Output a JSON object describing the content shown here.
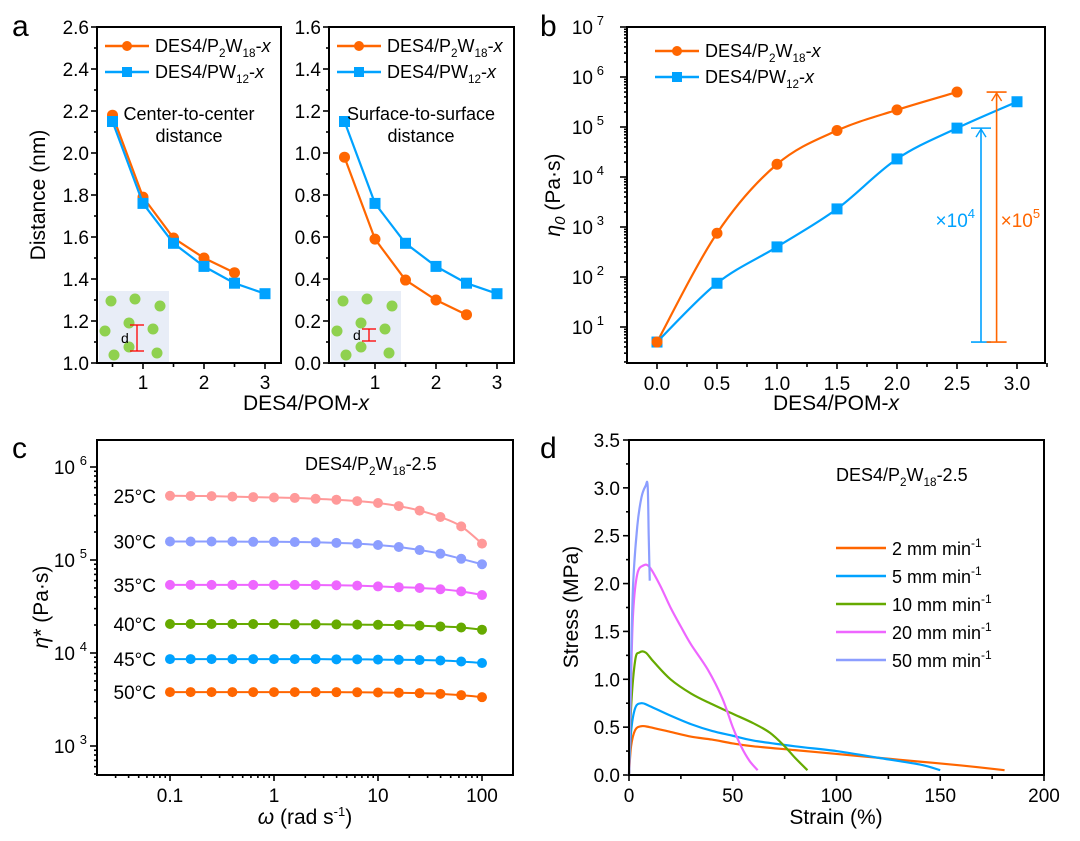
{
  "colors": {
    "orange": "#ff6600",
    "blue": "#00a2ff",
    "pink": "#ff9999",
    "periwinkle": "#8c9eff",
    "magenta": "#ee66ff",
    "green": "#66aa00",
    "inset_bg": "#e8edf7",
    "inset_dot": "#8fd14f",
    "inset_marker": "#ff0000"
  },
  "panels": {
    "a": "a",
    "b": "b",
    "c": "c",
    "d": "d"
  },
  "chart_data": [
    {
      "id": "a-left",
      "type": "line",
      "panel": "a",
      "title": "",
      "annotation": [
        "Center-to-center",
        "distance"
      ],
      "xlabel": "DES4/POM-x",
      "ylabel": "Distance (nm)",
      "xlim": [
        0.3,
        3.25
      ],
      "ylim": [
        1.0,
        2.6
      ],
      "xticks": [
        1,
        2,
        3
      ],
      "yticks": [
        1.0,
        1.2,
        1.4,
        1.6,
        1.8,
        2.0,
        2.2,
        2.4,
        2.6
      ],
      "legend": "top-left",
      "series": [
        {
          "name": "DES4/P2W18-x",
          "label_main": "DES4/P",
          "sub1": "2",
          "mid": "W",
          "sub2": "18",
          "tail": "-x",
          "color": "#ff6600",
          "marker": "circle",
          "x": [
            0.5,
            1.0,
            1.5,
            2.0,
            2.5
          ],
          "y": [
            2.18,
            1.79,
            1.595,
            1.5,
            1.43
          ]
        },
        {
          "name": "DES4/PW12-x",
          "label_main": "DES4/PW",
          "sub1": "12",
          "mid": "",
          "sub2": "",
          "tail": "-x",
          "color": "#00a2ff",
          "marker": "square",
          "x": [
            0.5,
            1.0,
            1.5,
            2.0,
            2.5,
            3.0
          ],
          "y": [
            2.15,
            1.76,
            1.57,
            1.46,
            1.38,
            1.33
          ]
        }
      ],
      "inset": {
        "label": "d"
      }
    },
    {
      "id": "a-right",
      "type": "line",
      "panel": "a",
      "annotation": [
        "Surface-to-surface",
        "distance"
      ],
      "xlabel": "DES4/POM-x",
      "ylabel": "",
      "xlim": [
        0.3,
        3.25
      ],
      "ylim": [
        0.0,
        1.6
      ],
      "xticks": [
        1,
        2,
        3
      ],
      "yticks": [
        0.0,
        0.2,
        0.4,
        0.6,
        0.8,
        1.0,
        1.2,
        1.4,
        1.6
      ],
      "legend": "top-left",
      "series": [
        {
          "name": "DES4/P2W18-x",
          "color": "#ff6600",
          "marker": "circle",
          "x": [
            0.5,
            1.0,
            1.5,
            2.0,
            2.5
          ],
          "y": [
            0.98,
            0.59,
            0.395,
            0.3,
            0.23
          ]
        },
        {
          "name": "DES4/PW12-x",
          "color": "#00a2ff",
          "marker": "square",
          "x": [
            0.5,
            1.0,
            1.5,
            2.0,
            2.5,
            3.0
          ],
          "y": [
            1.15,
            0.76,
            0.57,
            0.46,
            0.38,
            0.33
          ]
        }
      ],
      "inset": {
        "label": "d"
      }
    },
    {
      "id": "b",
      "type": "line",
      "panel": "b",
      "xlabel": "DES4/POM-x",
      "ylabel": "η0 (Pa·s)",
      "yscale": "log",
      "xlim": [
        -0.25,
        3.25
      ],
      "ylim": [
        2,
        10000000
      ],
      "xticks": [
        0.0,
        0.5,
        1.0,
        1.5,
        2.0,
        2.5,
        3.0
      ],
      "xticklabels": [
        "0.0",
        "0.5",
        "1.0",
        "1.5",
        "2.0",
        "2.5",
        "3.0"
      ],
      "yticks_exp": [
        1,
        2,
        3,
        4,
        5,
        6,
        7
      ],
      "legend": "top-left",
      "series": [
        {
          "name": "DES4/P2W18-x",
          "color": "#ff6600",
          "marker": "circle",
          "x": [
            0.0,
            0.5,
            1.0,
            1.5,
            2.0,
            2.5
          ],
          "y": [
            5,
            750,
            18000,
            85000,
            220000,
            500000
          ]
        },
        {
          "name": "DES4/PW12-x",
          "color": "#00a2ff",
          "marker": "square",
          "x": [
            0.0,
            0.5,
            1.0,
            1.5,
            2.0,
            2.5,
            3.0
          ],
          "y": [
            5,
            75,
            400,
            2300,
            23000,
            95000,
            320000
          ]
        }
      ],
      "annotations": [
        {
          "text_base": "×10",
          "text_exp": "4",
          "color": "#00a2ff",
          "x": 2.7,
          "y_from": 5,
          "y_to": 95000
        },
        {
          "text_base": "×10",
          "text_exp": "5",
          "color": "#ff6600",
          "x": 2.83,
          "y_from": 5,
          "y_to": 500000
        }
      ]
    },
    {
      "id": "c",
      "type": "line",
      "panel": "c",
      "title": "DES4/P2W18-2.5",
      "xlabel": "ω (rad s-1)",
      "ylabel": "η* (Pa·s)",
      "xscale": "log",
      "yscale": "log",
      "xlim": [
        0.02,
        200
      ],
      "ylim": [
        500,
        1500000
      ],
      "xticks": [
        0.1,
        1,
        10,
        100
      ],
      "xticklabels": [
        "0.1",
        "1",
        "10",
        "100"
      ],
      "yticks_exp": [
        3,
        4,
        5,
        6
      ],
      "x": [
        0.1,
        0.158,
        0.251,
        0.398,
        0.631,
        1,
        1.585,
        2.512,
        3.981,
        6.31,
        10,
        15.85,
        25.12,
        39.81,
        63.1,
        100
      ],
      "series": [
        {
          "name": "25°C",
          "color": "#ff9999",
          "y": [
            490000,
            488000,
            486000,
            480000,
            475000,
            470000,
            465000,
            455000,
            445000,
            430000,
            410000,
            380000,
            340000,
            290000,
            230000,
            150000
          ]
        },
        {
          "name": "30°C",
          "color": "#8c9eff",
          "y": [
            158000,
            158000,
            158000,
            158000,
            157000,
            157000,
            156000,
            155000,
            153000,
            150000,
            145000,
            138000,
            128000,
            117000,
            103000,
            90000
          ]
        },
        {
          "name": "35°C",
          "color": "#ee66ff",
          "y": [
            54000,
            54000,
            54000,
            54000,
            54000,
            54000,
            54000,
            53800,
            53500,
            53000,
            52000,
            51000,
            50000,
            48500,
            46000,
            42000
          ]
        },
        {
          "name": "40°C",
          "color": "#66aa00",
          "y": [
            20500,
            20500,
            20500,
            20500,
            20500,
            20500,
            20400,
            20400,
            20300,
            20200,
            20100,
            20000,
            19700,
            19300,
            18800,
            17800
          ]
        },
        {
          "name": "45°C",
          "color": "#00a2ff",
          "y": [
            8600,
            8600,
            8600,
            8600,
            8600,
            8600,
            8600,
            8600,
            8550,
            8550,
            8500,
            8450,
            8400,
            8300,
            8100,
            7800
          ]
        },
        {
          "name": "50°C",
          "color": "#ff6600",
          "y": [
            3800,
            3800,
            3800,
            3800,
            3800,
            3800,
            3800,
            3800,
            3790,
            3780,
            3760,
            3740,
            3700,
            3640,
            3520,
            3350
          ]
        }
      ]
    },
    {
      "id": "d",
      "type": "line",
      "panel": "d",
      "title": "DES4/P2W18-2.5",
      "xlabel": "Strain (%)",
      "ylabel": "Stress (MPa)",
      "xlim": [
        0,
        200
      ],
      "ylim": [
        0,
        3.5
      ],
      "xticks": [
        0,
        50,
        100,
        150,
        200
      ],
      "yticks": [
        0.0,
        0.5,
        1.0,
        1.5,
        2.0,
        2.5,
        3.0,
        3.5
      ],
      "yticklabels": [
        "0.0",
        "0.5",
        "1.0",
        "1.5",
        "2.0",
        "2.5",
        "3.0",
        "3.5"
      ],
      "legend": "right",
      "series": [
        {
          "name": "2 mm min-1",
          "label": "2 mm min",
          "color": "#ff6600",
          "x": [
            0,
            1,
            3,
            6,
            10,
            20,
            30,
            40,
            50,
            60,
            80,
            100,
            120,
            140,
            160,
            181
          ],
          "y": [
            0,
            0.3,
            0.47,
            0.51,
            0.5,
            0.45,
            0.4,
            0.37,
            0.33,
            0.3,
            0.26,
            0.22,
            0.18,
            0.14,
            0.1,
            0.05
          ]
        },
        {
          "name": "5 mm min-1",
          "label": "5 mm min",
          "color": "#00a2ff",
          "x": [
            0,
            1,
            3,
            6,
            10,
            20,
            30,
            40,
            50,
            60,
            80,
            100,
            120,
            140,
            150
          ],
          "y": [
            0,
            0.45,
            0.7,
            0.75,
            0.72,
            0.62,
            0.53,
            0.46,
            0.41,
            0.36,
            0.3,
            0.25,
            0.18,
            0.11,
            0.05
          ]
        },
        {
          "name": "10 mm min-1",
          "label": "10 mm min",
          "color": "#66aa00",
          "x": [
            0,
            1,
            3,
            5,
            8,
            12,
            20,
            30,
            40,
            50,
            60,
            68,
            75,
            80,
            86
          ],
          "y": [
            0,
            0.7,
            1.2,
            1.28,
            1.28,
            1.18,
            1.0,
            0.85,
            0.74,
            0.64,
            0.54,
            0.44,
            0.3,
            0.18,
            0.05
          ]
        },
        {
          "name": "20 mm min-1",
          "label": "20 mm min",
          "color": "#ee66ff",
          "x": [
            0,
            1,
            2,
            4,
            7,
            10,
            15,
            20,
            25,
            30,
            38,
            45,
            50,
            54,
            58,
            62
          ],
          "y": [
            0,
            1.0,
            1.7,
            2.1,
            2.19,
            2.17,
            1.98,
            1.75,
            1.55,
            1.36,
            1.1,
            0.8,
            0.5,
            0.3,
            0.15,
            0.05
          ]
        },
        {
          "name": "50 mm min-1",
          "label": "50 mm min",
          "color": "#8c9eff",
          "x": [
            0,
            1,
            2,
            4,
            6,
            8,
            9,
            9.5,
            10
          ],
          "y": [
            0,
            1.2,
            2.0,
            2.6,
            2.9,
            3.02,
            3.02,
            2.5,
            2.03
          ]
        }
      ]
    }
  ]
}
